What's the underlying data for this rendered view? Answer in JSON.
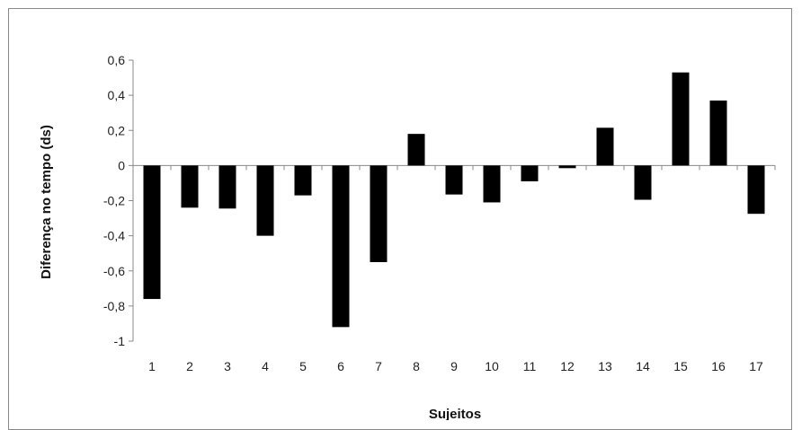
{
  "chart_data": {
    "type": "bar",
    "title": "",
    "xlabel": "Sujeitos",
    "ylabel": "Diferença no tempo (ds)",
    "categories": [
      "1",
      "2",
      "3",
      "4",
      "5",
      "6",
      "7",
      "8",
      "9",
      "10",
      "11",
      "12",
      "13",
      "14",
      "15",
      "16",
      "17"
    ],
    "values": [
      -0.76,
      -0.24,
      -0.245,
      -0.4,
      -0.17,
      -0.92,
      -0.55,
      0.18,
      -0.165,
      -0.21,
      -0.09,
      -0.015,
      0.215,
      -0.195,
      0.53,
      0.37,
      -0.275
    ],
    "ylim": [
      -1,
      0.6
    ],
    "yticks": [
      0.6,
      0.4,
      0.2,
      0,
      -0.2,
      -0.4,
      -0.6,
      -0.8,
      -1
    ],
    "ytick_labels": [
      "0,6",
      "0,4",
      "0,2",
      "0",
      "-0,2",
      "-0,4",
      "-0,6",
      "-0,8",
      "-1"
    ],
    "grid": false,
    "legend": "none",
    "bar_color": "#000000"
  }
}
